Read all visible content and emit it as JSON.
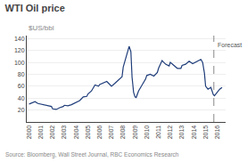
{
  "chart_data": {
    "type": "line",
    "title": "WTI Oil price",
    "ylabel": "$US/bbl",
    "source": "Source: Bloomberg, Wall Street Journal, RBC Economics Research",
    "forecast": {
      "x": 2015.7,
      "label": "Forecast",
      "label_y": 138,
      "line_style": "dashed"
    },
    "color": "#1f3d7a",
    "grid": "y",
    "xlim": [
      1999.8,
      2016.7
    ],
    "xticks": [
      2000,
      2001,
      2002,
      2003,
      2004,
      2005,
      2006,
      2007,
      2008,
      2009,
      2010,
      2011,
      2012,
      2013,
      2014,
      2015,
      2016
    ],
    "ylim": [
      0,
      145
    ],
    "yticks": [
      20,
      40,
      60,
      80,
      100,
      120,
      140
    ],
    "x": [
      2000.0,
      2000.2,
      2000.5,
      2000.75,
      2001.0,
      2001.3,
      2001.6,
      2001.9,
      2002.0,
      2002.3,
      2002.6,
      2002.9,
      2003.0,
      2003.3,
      2003.6,
      2003.9,
      2004.0,
      2004.3,
      2004.6,
      2004.9,
      2005.0,
      2005.3,
      2005.6,
      2005.9,
      2006.0,
      2006.3,
      2006.6,
      2006.9,
      2007.0,
      2007.3,
      2007.6,
      2007.9,
      2008.0,
      2008.3,
      2008.5,
      2008.65,
      2008.75,
      2008.88,
      2009.0,
      2009.1,
      2009.3,
      2009.6,
      2009.9,
      2010.0,
      2010.3,
      2010.6,
      2010.9,
      2011.0,
      2011.3,
      2011.6,
      2011.9,
      2012.0,
      2012.3,
      2012.6,
      2012.9,
      2013.0,
      2013.3,
      2013.6,
      2013.9,
      2014.0,
      2014.3,
      2014.6,
      2014.75,
      2014.9,
      2015.0,
      2015.2,
      2015.45,
      2015.55,
      2015.65,
      2015.75,
      2015.82,
      2016.0,
      2016.2,
      2016.4
    ],
    "values": [
      30,
      32,
      34,
      31,
      30,
      29,
      27,
      26,
      22,
      21,
      24,
      26,
      28,
      27,
      29,
      32,
      34,
      36,
      42,
      43,
      47,
      52,
      62,
      60,
      63,
      65,
      68,
      62,
      60,
      65,
      70,
      76,
      92,
      115,
      127,
      118,
      75,
      50,
      42,
      41,
      52,
      62,
      72,
      78,
      80,
      77,
      83,
      90,
      103,
      97,
      94,
      100,
      95,
      90,
      90,
      95,
      97,
      102,
      98,
      99,
      102,
      105,
      100,
      82,
      60,
      55,
      58,
      52,
      46,
      44,
      46,
      50,
      55,
      58
    ]
  }
}
